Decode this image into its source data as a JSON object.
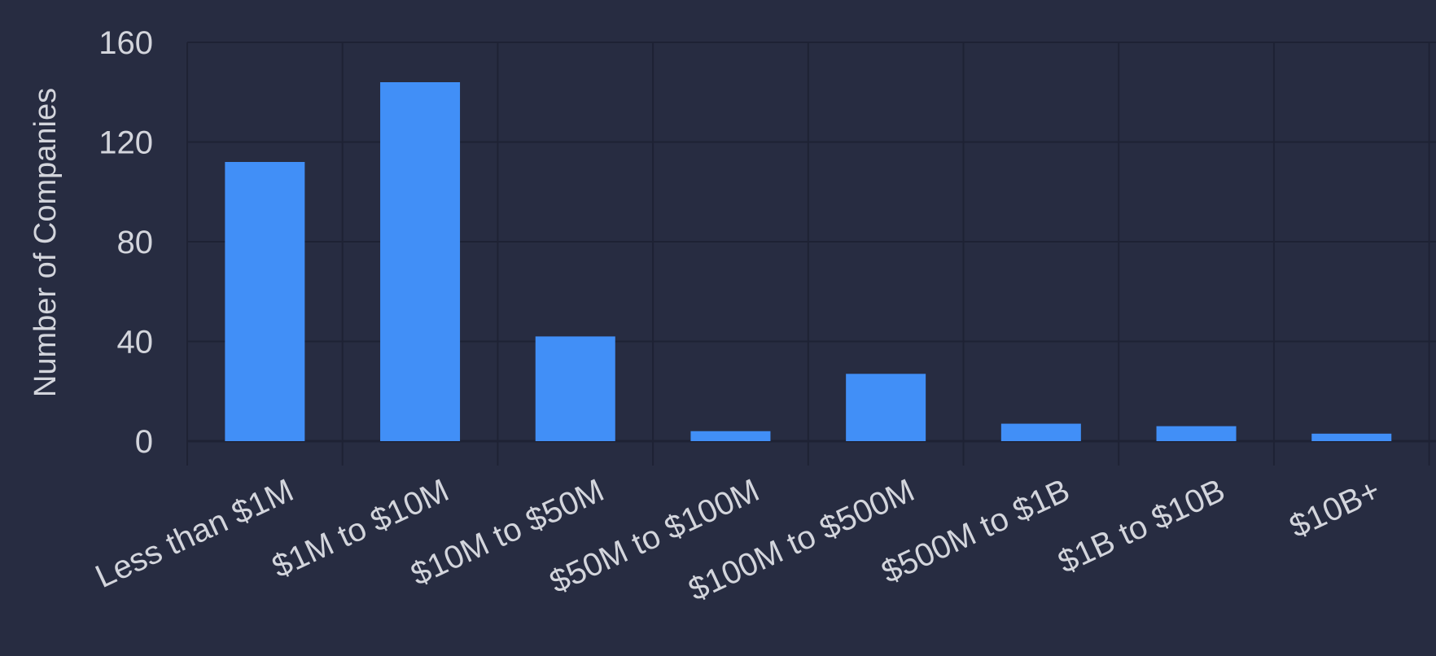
{
  "chart_data": {
    "type": "bar",
    "categories": [
      "Less than $1M",
      "$1M to $10M",
      "$10M to $50M",
      "$50M to $100M",
      "$100M to $500M",
      "$500M to $1B",
      "$1B to $10B",
      "$10B+"
    ],
    "values": [
      112,
      144,
      42,
      4,
      27,
      7,
      6,
      3
    ],
    "ylabel": "Number of Companies",
    "ylim": [
      0,
      160
    ],
    "yticks": [
      0,
      40,
      80,
      120,
      160
    ],
    "grid": true,
    "colors": {
      "background": "#272c41",
      "bar": "#418ff7",
      "grid": "#1e2234",
      "text": "#d3d5dc"
    }
  }
}
